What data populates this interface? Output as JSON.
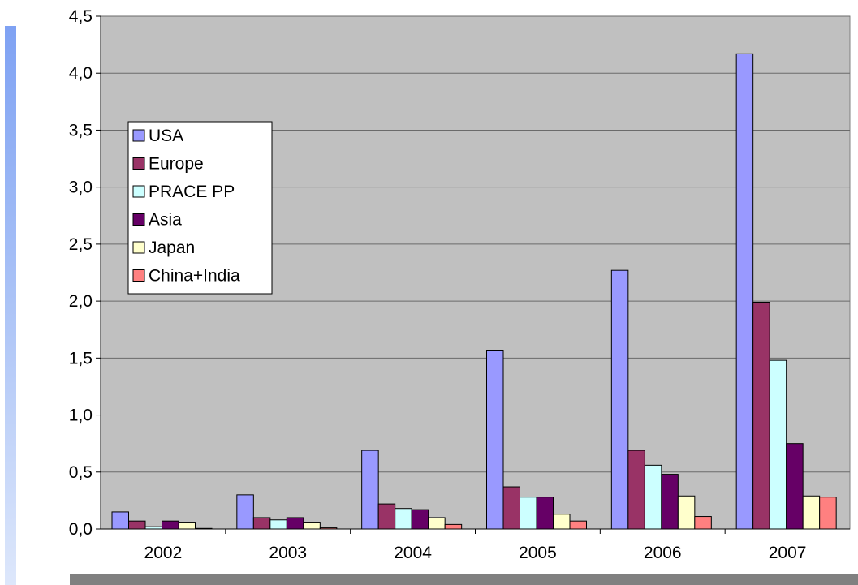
{
  "chart_data": {
    "type": "bar",
    "title": "",
    "xlabel": "",
    "ylabel": "",
    "categories": [
      "2002",
      "2003",
      "2004",
      "2005",
      "2006",
      "2007"
    ],
    "ylim": [
      0,
      4.5
    ],
    "y_ticks": [
      "0,0",
      "0,5",
      "1,0",
      "1,5",
      "2,0",
      "2,5",
      "3,0",
      "3,5",
      "4,0",
      "4,5"
    ],
    "grid": true,
    "legend_position": "left",
    "plot_background": "#c0c0c0",
    "series": [
      {
        "name": "USA",
        "color": "#9999ff",
        "values": [
          0.15,
          0.3,
          0.69,
          1.57,
          2.27,
          4.17
        ]
      },
      {
        "name": "Europe",
        "color": "#993366",
        "values": [
          0.07,
          0.1,
          0.22,
          0.37,
          0.69,
          1.99
        ]
      },
      {
        "name": "PRACE PP",
        "color": "#ccffff",
        "values": [
          0.02,
          0.08,
          0.18,
          0.28,
          0.56,
          1.48
        ]
      },
      {
        "name": "Asia",
        "color": "#660066",
        "values": [
          0.07,
          0.1,
          0.17,
          0.28,
          0.48,
          0.75
        ]
      },
      {
        "name": "Japan",
        "color": "#ffffcc",
        "values": [
          0.06,
          0.06,
          0.1,
          0.13,
          0.29,
          0.29
        ]
      },
      {
        "name": "China+India",
        "color": "#ff8080",
        "values": [
          0.005,
          0.01,
          0.04,
          0.07,
          0.11,
          0.28
        ]
      }
    ]
  }
}
